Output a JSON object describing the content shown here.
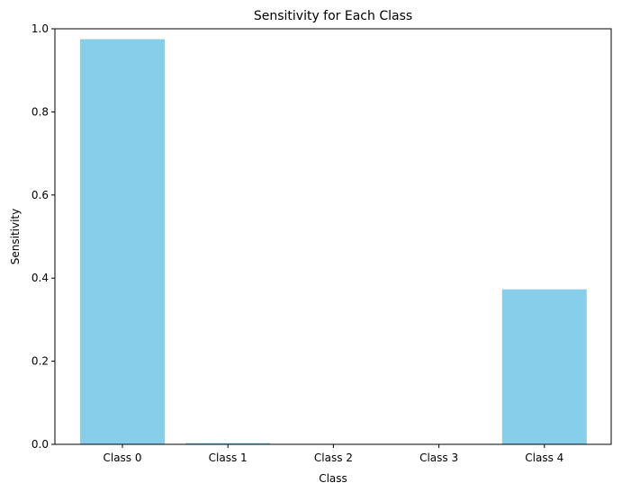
{
  "chart_data": {
    "type": "bar",
    "title": "Sensitivity for Each Class",
    "xlabel": "Class",
    "ylabel": "Sensitivity",
    "categories": [
      "Class 0",
      "Class 1",
      "Class 2",
      "Class 3",
      "Class 4"
    ],
    "values": [
      0.975,
      0.003,
      0.0,
      0.0,
      0.373
    ],
    "ylim": [
      0,
      1
    ],
    "yticks": [
      "0.0",
      "0.2",
      "0.4",
      "0.6",
      "0.8",
      "1.0"
    ],
    "bar_color": "#87ceeb",
    "grid": false,
    "legend": "none"
  }
}
